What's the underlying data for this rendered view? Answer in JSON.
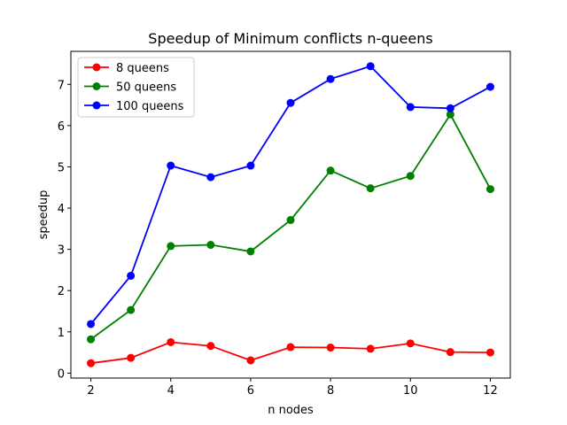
{
  "chart_data": {
    "type": "line",
    "title": "Speedup of Minimum conflicts n-queens",
    "xlabel": "n nodes",
    "ylabel": "speedup",
    "x": [
      2,
      3,
      4,
      5,
      6,
      7,
      8,
      9,
      10,
      11,
      12
    ],
    "xlim": [
      1.5,
      12.5
    ],
    "ylim": [
      -0.12,
      7.8
    ],
    "xticks": [
      2,
      4,
      6,
      8,
      10,
      12
    ],
    "yticks": [
      0,
      1,
      2,
      3,
      4,
      5,
      6,
      7
    ],
    "grid": false,
    "legend_position": "top-left",
    "series": [
      {
        "name": "8 queens",
        "color": "#ff0000",
        "values": [
          0.24,
          0.37,
          0.75,
          0.66,
          0.31,
          0.63,
          0.62,
          0.59,
          0.72,
          0.51,
          0.5
        ]
      },
      {
        "name": "50 queens",
        "color": "#008000",
        "values": [
          0.82,
          1.53,
          3.08,
          3.11,
          2.95,
          3.71,
          4.91,
          4.48,
          4.78,
          6.27,
          4.46
        ]
      },
      {
        "name": "100 queens",
        "color": "#0000ff",
        "values": [
          1.19,
          2.36,
          5.03,
          4.75,
          5.03,
          6.55,
          7.13,
          7.44,
          6.45,
          6.42,
          6.94
        ]
      }
    ]
  }
}
